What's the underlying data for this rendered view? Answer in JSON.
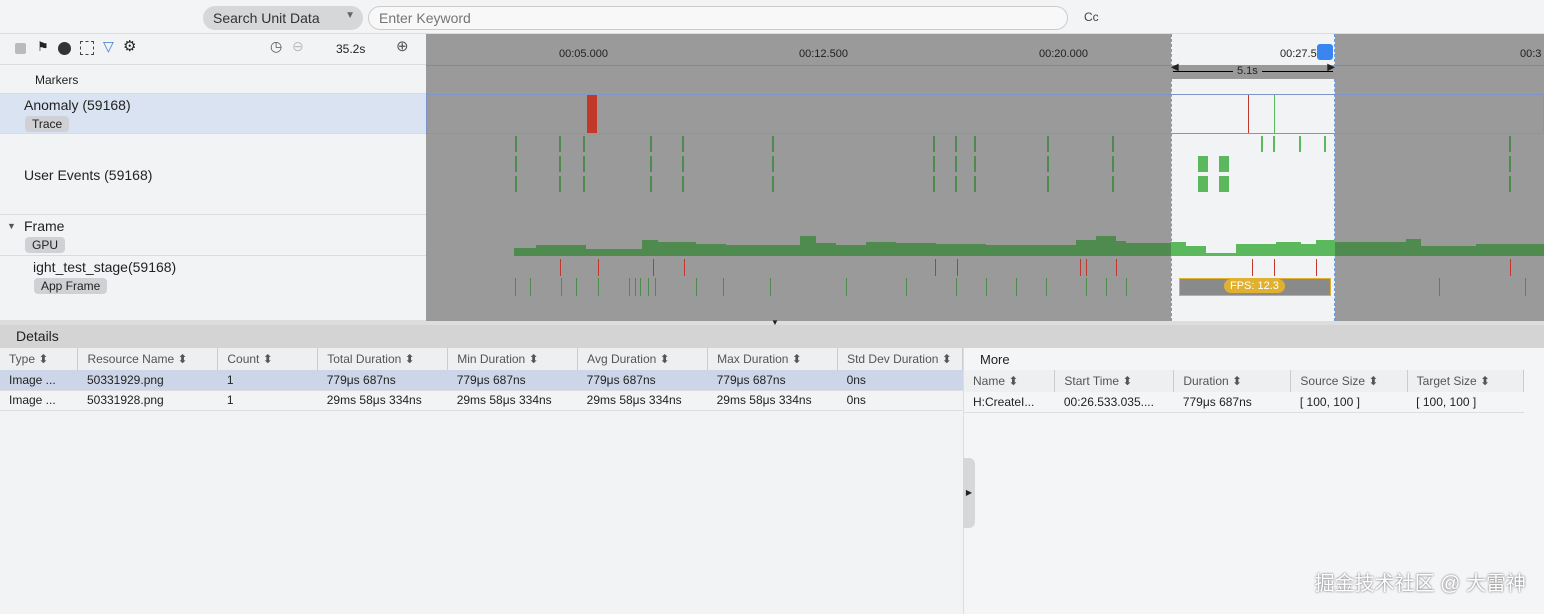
{
  "toolbar": {
    "search_scope": "Search Unit Data",
    "keyword_placeholder": "Enter Keyword",
    "case_label": "Cc"
  },
  "timeline_controls": {
    "zoom_level": "35.2s",
    "icons": [
      "stop-icon",
      "flag-icon",
      "navigate-icon",
      "screenshot-select-icon",
      "filter-icon",
      "settings-icon",
      "reset-icon",
      "zoom-out-icon",
      "zoom-in-icon"
    ]
  },
  "axis": {
    "ticks": [
      "00:05.000",
      "00:12.500",
      "00:20.000",
      "00:27.500",
      "00:3"
    ],
    "selection_duration": "5.1s"
  },
  "tracks": {
    "markers": "Markers",
    "anomaly": {
      "label": "Anomaly (59168)",
      "tag": "Trace"
    },
    "user_events": {
      "label": "User Events (59168)"
    },
    "frame": {
      "label": "Frame",
      "tag": "GPU"
    },
    "app": {
      "label": "ight_test_stage(59168)",
      "tag": "App Frame",
      "fps": "FPS: 12.3"
    }
  },
  "details": {
    "title": "Details",
    "columns": [
      "Type",
      "Resource Name",
      "Count",
      "Total Duration",
      "Min Duration",
      "Avg Duration",
      "Max Duration",
      "Std Dev Duration"
    ],
    "rows": [
      [
        "Image ...",
        "50331929.png",
        "1",
        "779μs 687ns",
        "779μs 687ns",
        "779μs 687ns",
        "779μs 687ns",
        "0ns"
      ],
      [
        "Image ...",
        "50331928.png",
        "1",
        "29ms 58μs 334ns",
        "29ms 58μs 334ns",
        "29ms 58μs 334ns",
        "29ms 58μs 334ns",
        "0ns"
      ]
    ]
  },
  "more": {
    "title": "More",
    "columns": [
      "Name",
      "Start Time",
      "Duration",
      "Source Size",
      "Target Size"
    ],
    "rows": [
      [
        "H:CreateI...",
        "00:26.533.035....",
        "779μs 687ns",
        "[ 100, 100 ]",
        "[ 100, 100 ]"
      ]
    ]
  },
  "colors": {
    "green": "#5cb85c",
    "dark_green": "#4f8a4f",
    "red": "#c0392b",
    "fps": "#e0b030",
    "selection": "#6a9de0"
  },
  "watermark": "掘金技术社区 @ 大雷神"
}
